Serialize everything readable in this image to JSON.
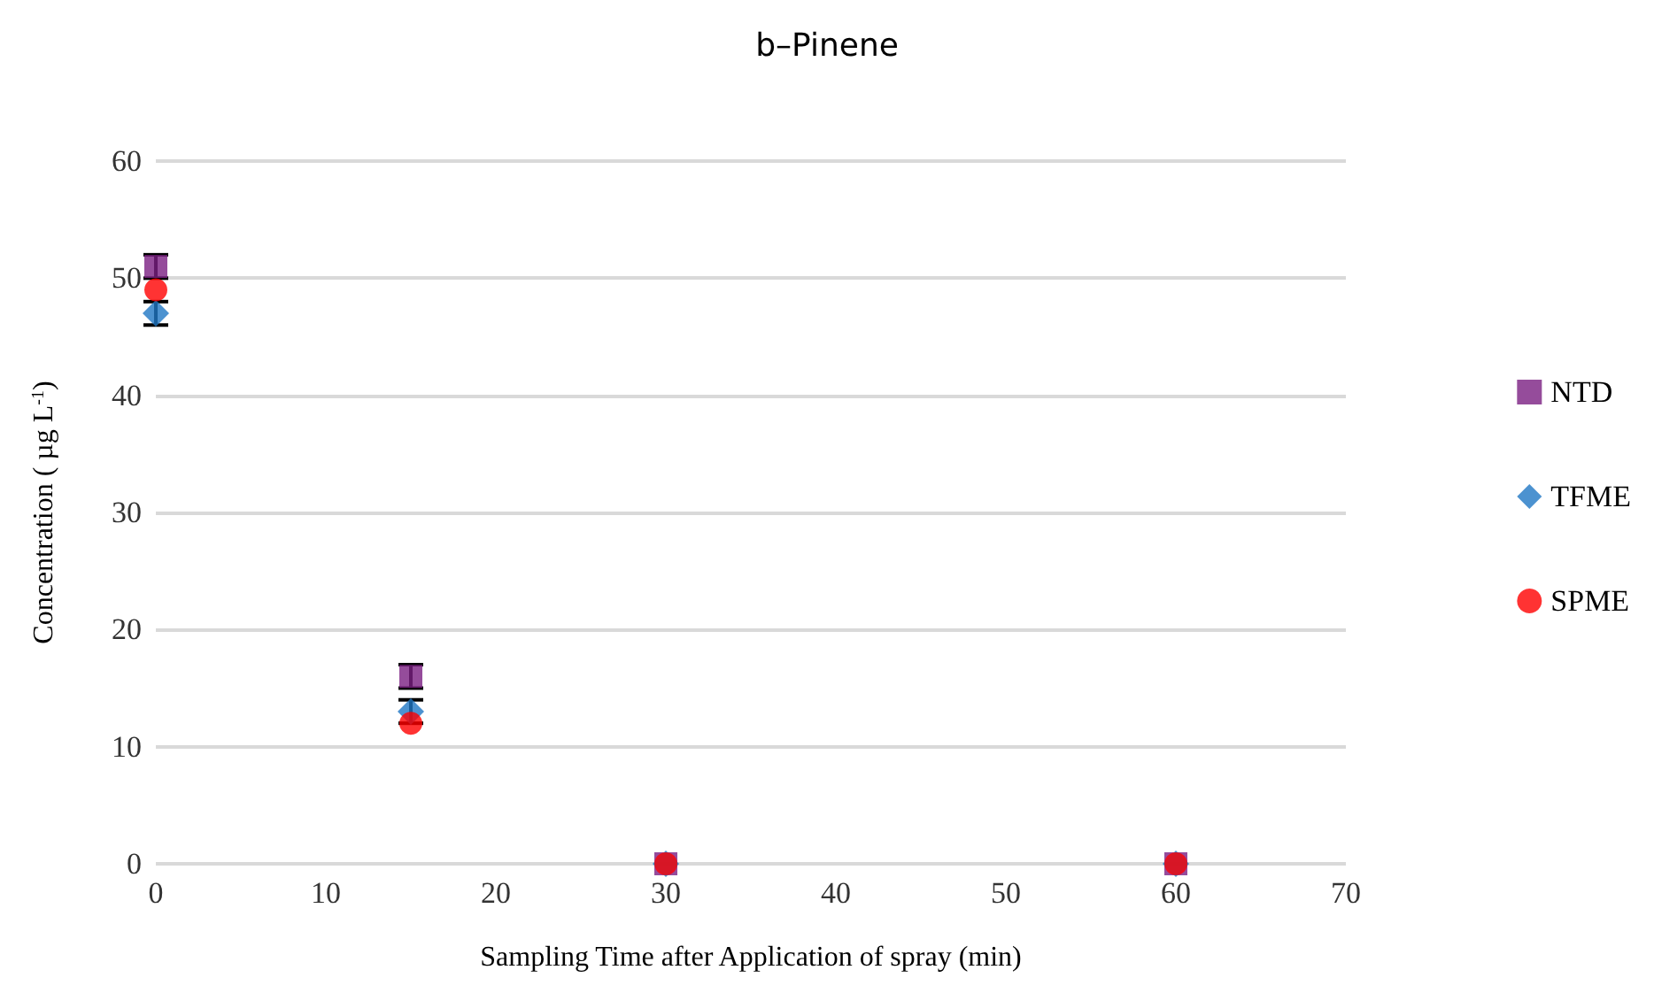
{
  "chart_data": {
    "type": "scatter",
    "title": "b–Pinene",
    "xlabel": "Sampling Time after Application of spray (min)",
    "ylabel": "Concentration ( µg L$^{-1}$)",
    "x": [
      0,
      15,
      30,
      60
    ],
    "series": [
      {
        "name": "NTD",
        "color": "#7b1f82",
        "marker": "square",
        "values": [
          51,
          16,
          0,
          0
        ],
        "errors": [
          1,
          1,
          null,
          null
        ]
      },
      {
        "name": "TFME",
        "color": "#1f77c4",
        "marker": "diamond",
        "values": [
          47,
          13,
          0,
          0
        ],
        "errors": [
          1,
          1,
          null,
          null
        ]
      },
      {
        "name": "SPME",
        "color": "#ff0000",
        "marker": "circle",
        "values": [
          49,
          12,
          0,
          0
        ]
      }
    ],
    "xlim": [
      0,
      70
    ],
    "xticks": [
      0,
      10,
      20,
      30,
      40,
      50,
      60,
      70
    ],
    "ylim": [
      0,
      60
    ],
    "yticks": [
      0,
      10,
      20,
      30,
      40,
      50,
      60
    ],
    "grid": "y",
    "legend": "right"
  }
}
